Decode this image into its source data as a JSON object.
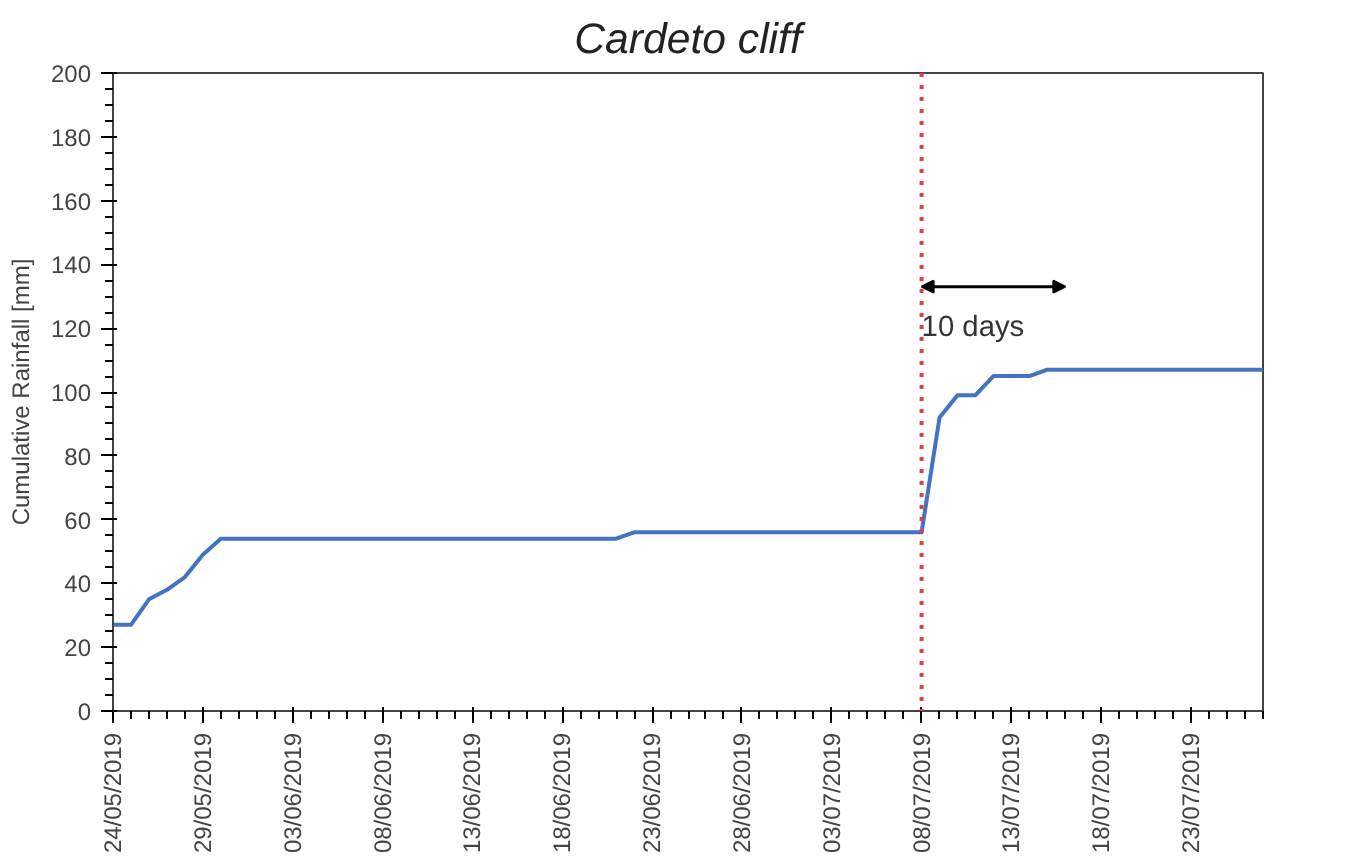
{
  "chart_data": {
    "type": "line",
    "title": "Cardeto cliff",
    "ylabel": "Cumulative Rainfall [mm]",
    "x": [
      "2019-05-24",
      "2019-05-25",
      "2019-05-26",
      "2019-05-27",
      "2019-05-28",
      "2019-05-29",
      "2019-05-30",
      "2019-06-21",
      "2019-06-22",
      "2019-07-08",
      "2019-07-09",
      "2019-07-10",
      "2019-07-11",
      "2019-07-12",
      "2019-07-14",
      "2019-07-15",
      "2019-07-27"
    ],
    "series": [
      {
        "color": "#4472c4",
        "values": [
          27,
          27,
          35,
          38,
          42,
          49,
          54,
          54,
          56,
          56,
          92,
          99,
          99,
          105,
          105,
          107,
          107
        ]
      }
    ],
    "xlim": [
      "2019-05-24",
      "2019-07-27"
    ],
    "xticks": [
      {
        "value": "2019-05-24",
        "label": "24/05/2019"
      },
      {
        "value": "2019-05-29",
        "label": "29/05/2019"
      },
      {
        "value": "2019-06-03",
        "label": "03/06/2019"
      },
      {
        "value": "2019-06-08",
        "label": "08/06/2019"
      },
      {
        "value": "2019-06-13",
        "label": "13/06/2019"
      },
      {
        "value": "2019-06-18",
        "label": "18/06/2019"
      },
      {
        "value": "2019-06-23",
        "label": "23/06/2019"
      },
      {
        "value": "2019-06-28",
        "label": "28/06/2019"
      },
      {
        "value": "2019-07-03",
        "label": "03/07/2019"
      },
      {
        "value": "2019-07-08",
        "label": "08/07/2019"
      },
      {
        "value": "2019-07-13",
        "label": "13/07/2019"
      },
      {
        "value": "2019-07-18",
        "label": "18/07/2019"
      },
      {
        "value": "2019-07-23",
        "label": "23/07/2019"
      }
    ],
    "ylim": [
      0,
      200
    ],
    "yticks": [
      0,
      20,
      40,
      60,
      80,
      100,
      120,
      140,
      160,
      180,
      200
    ],
    "ref_lines": [
      {
        "axis": "x",
        "value": "2019-07-08",
        "color": "#e04040",
        "line_style": "dotted"
      }
    ],
    "annotations": [
      {
        "text": "10 days",
        "x": "2019-07-08",
        "y": 125
      }
    ],
    "marker": "none",
    "line_style": "solid"
  }
}
